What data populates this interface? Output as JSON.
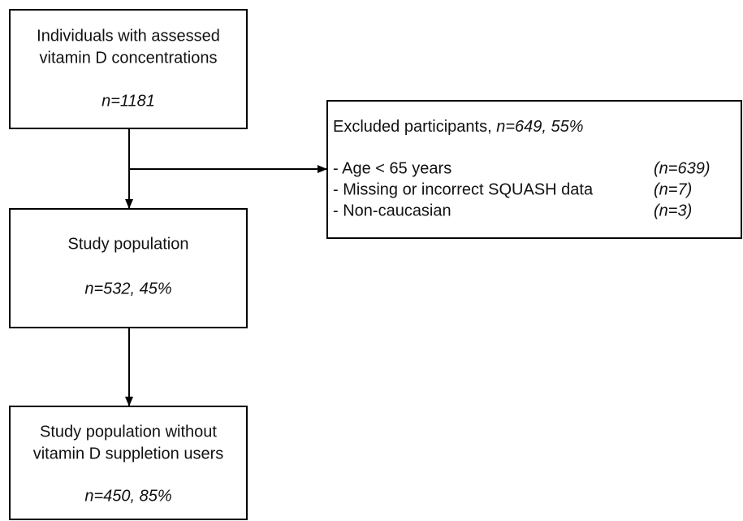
{
  "nodes": [
    {
      "lines": [
        "Individuals with assessed",
        "vitamin D concentrations"
      ],
      "count": "n=1181"
    },
    {
      "lines": [
        "Study population"
      ],
      "count": "n=532, 45%"
    },
    {
      "lines": [
        "Study population without",
        "vitamin D suppletion users"
      ],
      "count": "n=450, 85%"
    }
  ],
  "exclusion": {
    "title": "Excluded participants, ",
    "count": "n=649, 55%",
    "items": [
      {
        "reason": "- Age < 65 years",
        "count": "(n=639)"
      },
      {
        "reason": "- Missing or incorrect SQUASH data",
        "count": "(n=7)"
      },
      {
        "reason": "- Non-caucasian",
        "count": "(n=3)"
      }
    ]
  }
}
